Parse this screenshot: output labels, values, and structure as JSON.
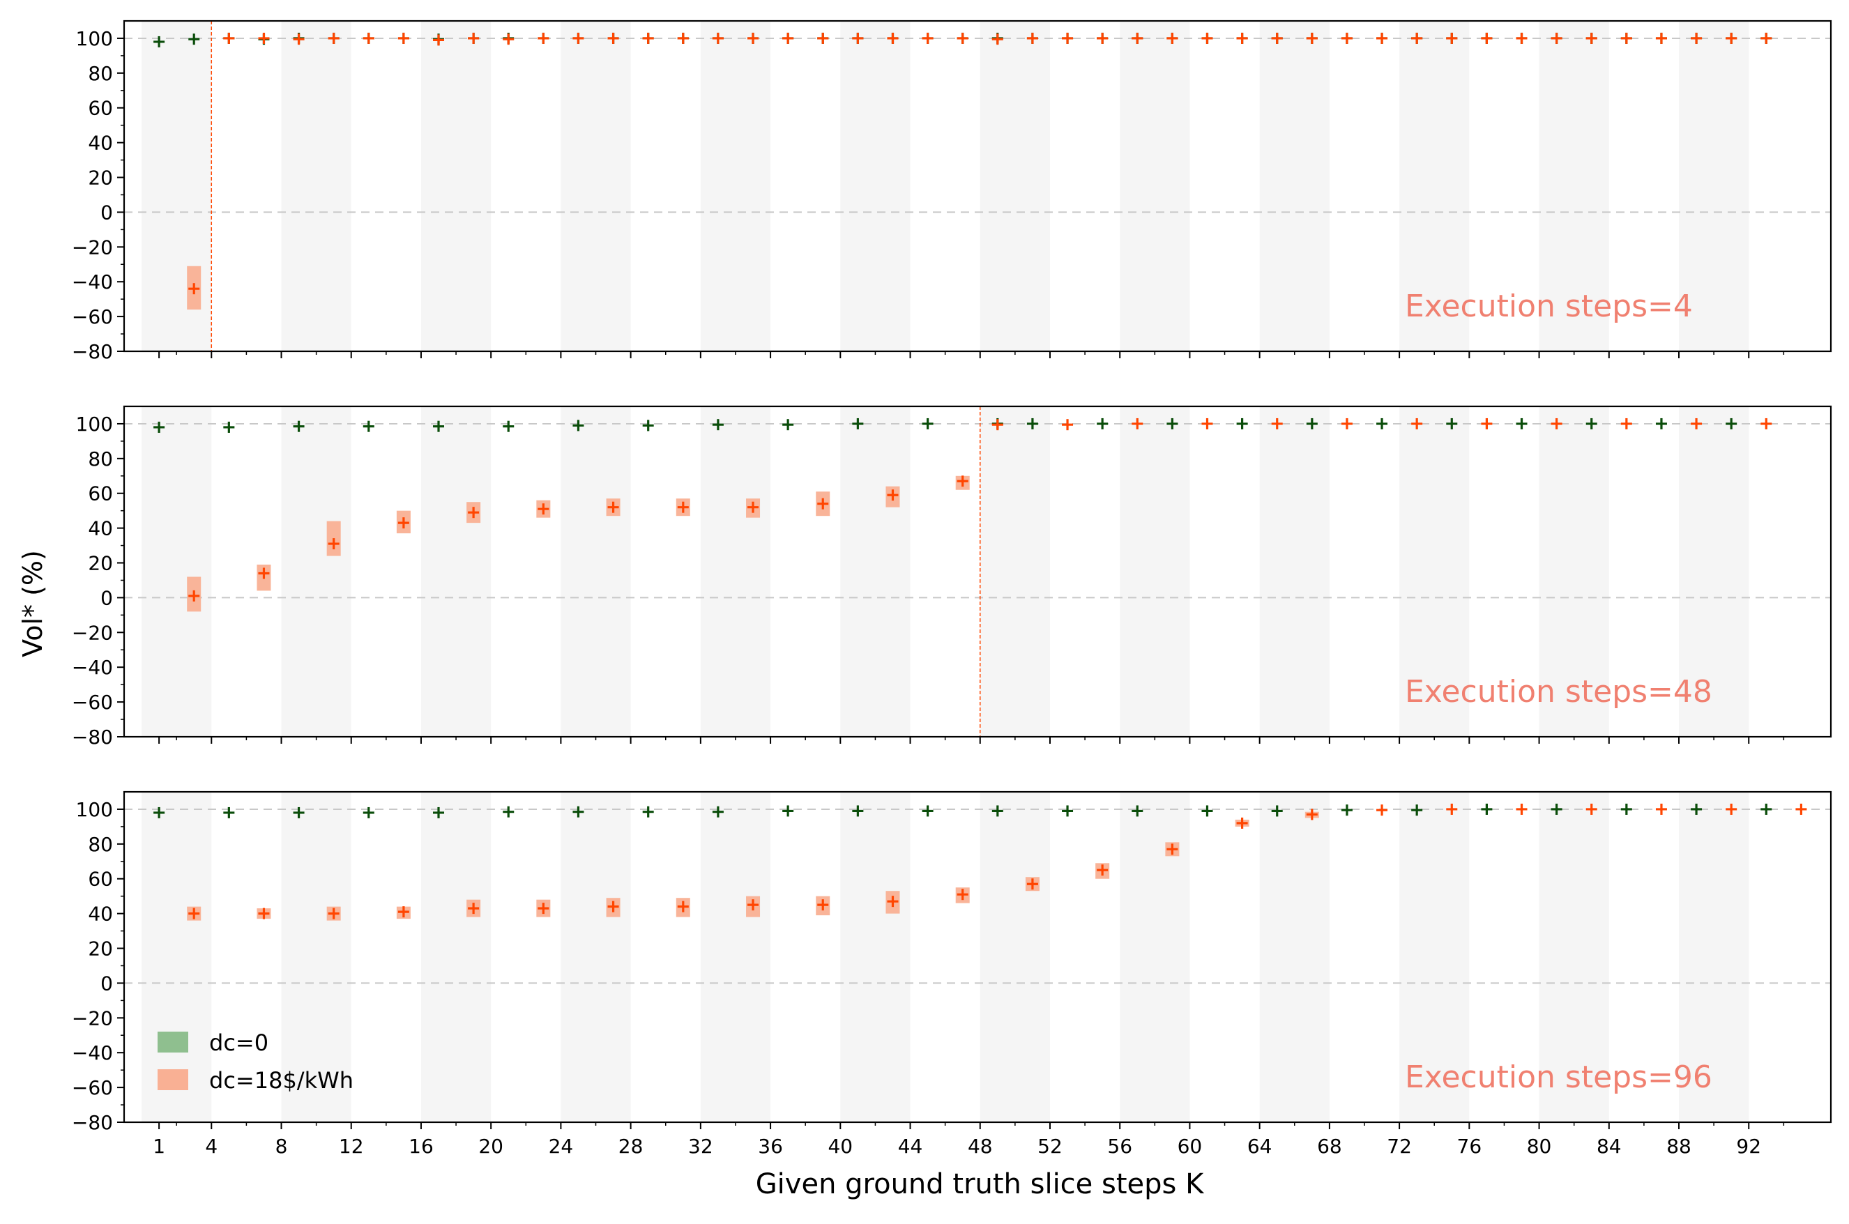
{
  "figure": {
    "ylabel": "Vol* (%)",
    "xlabel": "Given ground truth slice steps K",
    "legend": [
      {
        "label": "dc=0",
        "color": "#8fbf8f"
      },
      {
        "label": "dc=18$/kWh",
        "color": "#f9b094"
      }
    ],
    "colors": {
      "dc0_marker": "#0a4d0a",
      "dc18_marker": "#ff4500",
      "dc18_band": "#f9b094",
      "stripe": "#f5f5f5",
      "vline": "#ff4500",
      "grid": "#c8c8c8",
      "exec_label": "#f08070"
    }
  },
  "chart_data": [
    {
      "type": "scatter",
      "panel_label": "Execution steps=4",
      "ylim": [
        -80,
        110
      ],
      "yticks": [
        100,
        80,
        60,
        40,
        20,
        0,
        -20,
        -40,
        -60,
        -80
      ],
      "xticks": [
        1,
        4,
        8,
        12,
        16,
        20,
        24,
        28,
        32,
        36,
        40,
        44,
        48,
        52,
        56,
        60,
        64,
        68,
        72,
        76,
        80,
        84,
        88,
        92
      ],
      "show_xtick_labels": false,
      "vline_x": 4,
      "grid_y": [
        100,
        0
      ],
      "legend": "none",
      "series": [
        {
          "name": "dc=0",
          "x": [
            1,
            3,
            5,
            7,
            9,
            11,
            13,
            15,
            17,
            19,
            21,
            23,
            25,
            27,
            29,
            31,
            33,
            35,
            37,
            39,
            41,
            43,
            45,
            47,
            49,
            51,
            53,
            55,
            57,
            59,
            61,
            63,
            65,
            67,
            69,
            71,
            73,
            75,
            77,
            79,
            81,
            83,
            85,
            87,
            89,
            91,
            93
          ],
          "y": [
            98,
            99.5,
            100,
            99.5,
            100,
            100,
            100,
            100,
            99.5,
            100,
            100,
            100,
            100,
            100,
            100,
            100,
            100,
            100,
            100,
            100,
            100,
            100,
            100,
            100,
            100,
            100,
            100,
            100,
            100,
            100,
            100,
            100,
            100,
            100,
            100,
            100,
            100,
            100,
            100,
            100,
            100,
            100,
            100,
            100,
            100,
            100,
            100
          ],
          "band_low": [],
          "band_high": []
        },
        {
          "name": "dc=18$/kWh",
          "x": [
            3,
            5,
            7,
            9,
            11,
            13,
            15,
            17,
            19,
            21,
            23,
            25,
            27,
            29,
            31,
            33,
            35,
            37,
            39,
            41,
            43,
            45,
            47,
            49,
            51,
            53,
            55,
            57,
            59,
            61,
            63,
            65,
            67,
            69,
            71,
            73,
            75,
            77,
            79,
            81,
            83,
            85,
            87,
            89,
            91,
            93
          ],
          "y": [
            -44,
            100,
            100,
            99.5,
            100,
            100,
            100,
            99,
            100,
            99.5,
            100,
            100,
            100,
            100,
            100,
            100,
            100,
            100,
            100,
            100,
            100,
            100,
            100,
            99.5,
            100,
            100,
            100,
            100,
            100,
            100,
            100,
            100,
            100,
            100,
            100,
            100,
            100,
            100,
            100,
            100,
            100,
            100,
            100,
            100,
            100,
            100
          ],
          "band_low": [
            -56
          ],
          "band_high": [
            -31
          ]
        }
      ]
    },
    {
      "type": "scatter",
      "panel_label": "Execution steps=48",
      "ylim": [
        -80,
        110
      ],
      "yticks": [
        100,
        80,
        60,
        40,
        20,
        0,
        -20,
        -40,
        -60,
        -80
      ],
      "xticks": [
        1,
        4,
        8,
        12,
        16,
        20,
        24,
        28,
        32,
        36,
        40,
        44,
        48,
        52,
        56,
        60,
        64,
        68,
        72,
        76,
        80,
        84,
        88,
        92
      ],
      "show_xtick_labels": false,
      "vline_x": 48,
      "grid_y": [
        100,
        0
      ],
      "legend": "none",
      "series": [
        {
          "name": "dc=0",
          "x": [
            1,
            5,
            9,
            13,
            17,
            21,
            25,
            29,
            33,
            37,
            41,
            45,
            49,
            51,
            55,
            59,
            63,
            67,
            71,
            75,
            79,
            83,
            87,
            91
          ],
          "y": [
            98,
            98,
            98.5,
            98.5,
            98.5,
            98.5,
            99,
            99,
            99.5,
            99.5,
            100,
            100,
            100,
            100,
            100,
            100,
            100,
            100,
            100,
            100,
            100,
            100,
            100,
            100
          ],
          "band_low": [],
          "band_high": []
        },
        {
          "name": "dc=18$/kWh",
          "x": [
            3,
            7,
            11,
            15,
            19,
            23,
            27,
            31,
            35,
            39,
            43,
            47,
            49,
            53,
            57,
            61,
            65,
            69,
            73,
            77,
            81,
            85,
            89,
            93
          ],
          "y": [
            1,
            14,
            31,
            43,
            49,
            51,
            52,
            52,
            52,
            54,
            59,
            67,
            99.5,
            99.5,
            100,
            100,
            100,
            100,
            100,
            100,
            100,
            100,
            100,
            100
          ],
          "band_low": [
            -8,
            4,
            24,
            37,
            43,
            46,
            47,
            47,
            46,
            47,
            52,
            62
          ],
          "band_high": [
            12,
            19,
            44,
            50,
            55,
            56,
            57,
            57,
            57,
            61,
            64,
            70
          ]
        }
      ]
    },
    {
      "type": "scatter",
      "panel_label": "Execution steps=96",
      "ylim": [
        -80,
        110
      ],
      "yticks": [
        100,
        80,
        60,
        40,
        20,
        0,
        -20,
        -40,
        -60,
        -80
      ],
      "xticks": [
        1,
        4,
        8,
        12,
        16,
        20,
        24,
        28,
        32,
        36,
        40,
        44,
        48,
        52,
        56,
        60,
        64,
        68,
        72,
        76,
        80,
        84,
        88,
        92
      ],
      "show_xtick_labels": true,
      "vline_x": null,
      "grid_y": [
        100,
        0
      ],
      "legend": "lower-left",
      "series": [
        {
          "name": "dc=0",
          "x": [
            1,
            5,
            9,
            13,
            17,
            21,
            25,
            29,
            33,
            37,
            41,
            45,
            49,
            53,
            57,
            61,
            65,
            69,
            73,
            77,
            81,
            85,
            89,
            93
          ],
          "y": [
            98,
            98,
            98,
            98,
            98,
            98.5,
            98.5,
            98.5,
            98.5,
            99,
            99,
            99,
            99,
            99,
            99,
            99,
            99,
            99.5,
            99.5,
            100,
            100,
            100,
            100,
            100
          ],
          "band_low": [],
          "band_high": []
        },
        {
          "name": "dc=18$/kWh",
          "x": [
            3,
            7,
            11,
            15,
            19,
            23,
            27,
            31,
            35,
            39,
            43,
            47,
            51,
            55,
            59,
            63,
            67,
            71,
            75,
            79,
            83,
            87,
            91,
            95
          ],
          "y": [
            40,
            40,
            40,
            41,
            43,
            43,
            44,
            44,
            45,
            45,
            47,
            51,
            57,
            65,
            77,
            92,
            97,
            99.5,
            100,
            100,
            100,
            100,
            100,
            100
          ],
          "band_low": [
            36,
            37,
            36,
            37,
            38,
            38,
            38,
            38,
            38,
            39,
            40,
            46,
            53,
            60,
            73,
            90,
            95
          ],
          "band_high": [
            44,
            43,
            44,
            44,
            48,
            48,
            49,
            49,
            50,
            50,
            53,
            55,
            61,
            69,
            81,
            94,
            98.5
          ]
        }
      ]
    }
  ]
}
